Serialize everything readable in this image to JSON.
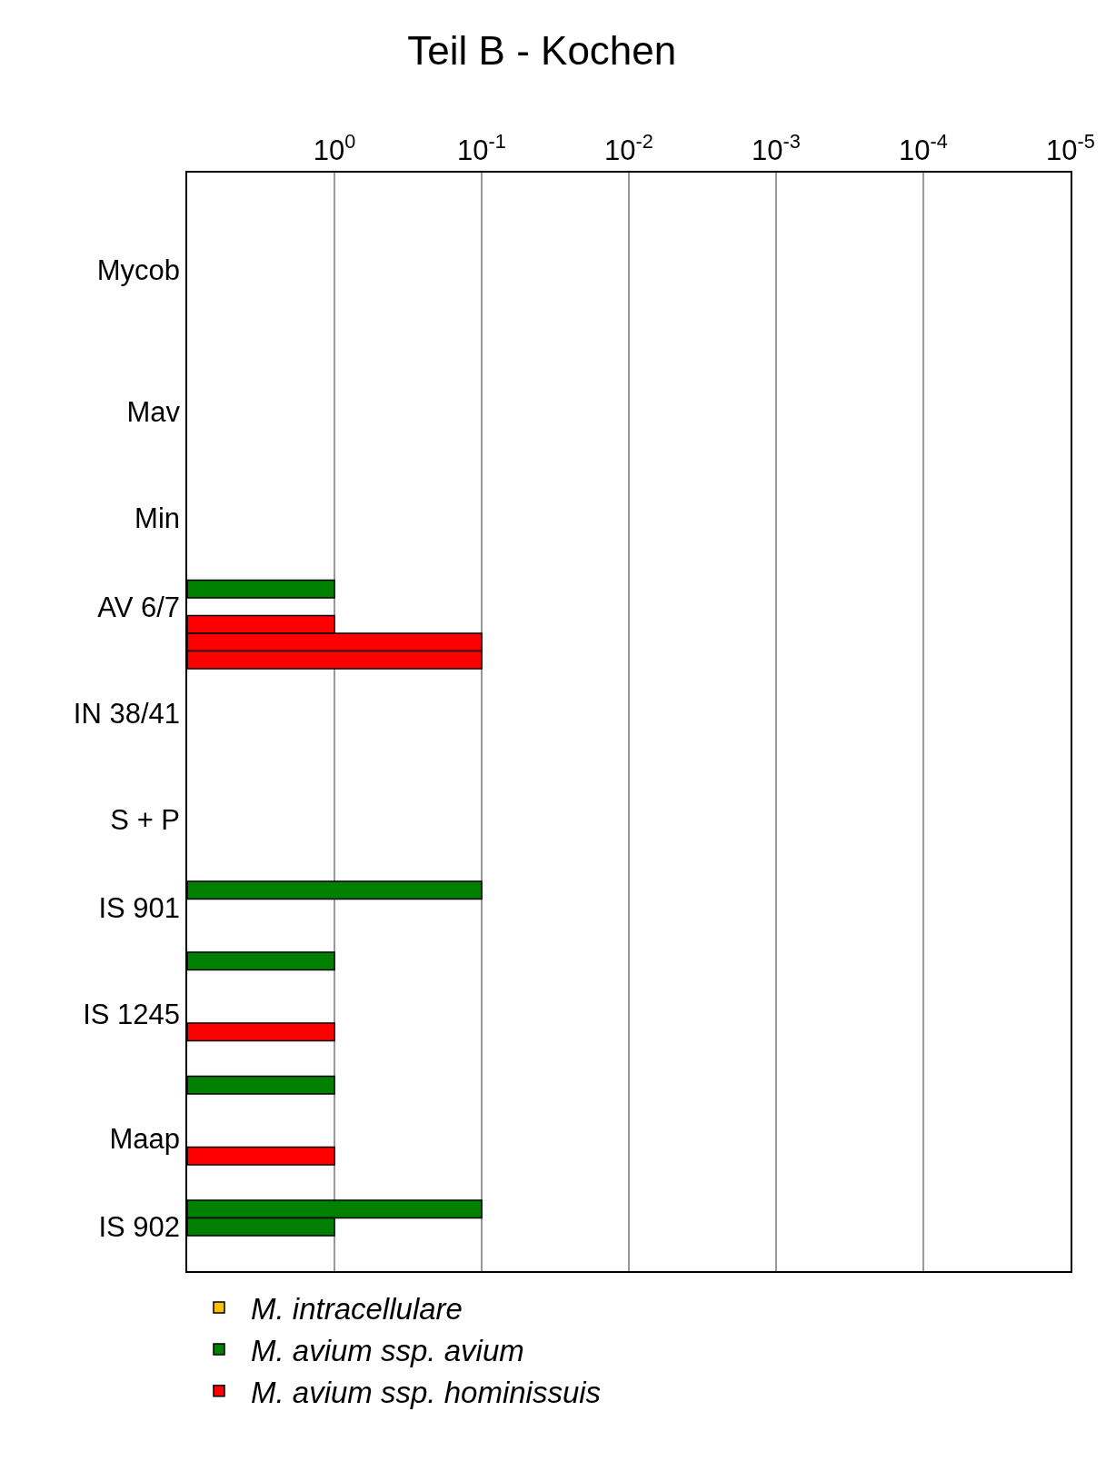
{
  "chart_data": {
    "type": "bar",
    "orientation": "horizontal",
    "title": "Teil B - Kochen",
    "log": "x",
    "xlim": [
      10,
      1e-05
    ],
    "xticks": [
      {
        "value": 1,
        "label": "10$^{0}$"
      },
      {
        "value": 0.1,
        "label": "10$^{-1}$"
      },
      {
        "value": 0.01,
        "label": "10$^{-2}$"
      },
      {
        "value": 0.001,
        "label": "10$^{-3}$"
      },
      {
        "value": 0.0001,
        "label": "10$^{-4}$"
      },
      {
        "value": 1e-05,
        "label": "10$^{-5}$"
      }
    ],
    "grid": "x",
    "legend": "bottom",
    "categories": [
      null,
      null,
      null,
      null,
      null,
      "Mycob",
      null,
      null,
      null,
      null,
      null,
      null,
      null,
      "Mav",
      null,
      null,
      null,
      null,
      null,
      "Min",
      null,
      null,
      null,
      null,
      "AV 6/7",
      null,
      null,
      null,
      null,
      null,
      "IN 38/41",
      null,
      null,
      null,
      null,
      null,
      "S + P",
      null,
      null,
      null,
      null,
      "IS 901",
      null,
      null,
      null,
      null,
      null,
      "IS 1245",
      null,
      null,
      null,
      null,
      null,
      null,
      "Maap",
      null,
      null,
      null,
      null,
      "IS 902",
      null,
      null
    ],
    "series": [
      {
        "name": "M. intracellulare",
        "color": "#ffc000",
        "values": [
          null,
          null,
          null,
          null,
          null,
          null,
          null,
          null,
          null,
          null,
          null,
          null,
          null,
          null,
          null,
          null,
          null,
          null,
          null,
          null,
          null,
          null,
          null,
          null,
          null,
          null,
          null,
          null,
          null,
          null,
          null,
          null,
          null,
          null,
          null,
          null,
          null,
          null,
          null,
          null,
          null,
          null,
          null,
          null,
          null,
          null,
          null,
          null,
          null,
          null,
          null,
          null,
          null,
          null,
          null,
          null,
          null,
          null,
          null,
          null,
          null,
          null
        ]
      },
      {
        "name": "M. avium ssp. avium",
        "color": "#008000",
        "base": [
          null,
          null,
          null,
          null,
          null,
          null,
          null,
          null,
          null,
          null,
          null,
          null,
          null,
          null,
          null,
          null,
          null,
          null,
          null,
          null,
          null,
          null,
          null,
          10,
          null,
          null,
          null,
          null,
          null,
          null,
          null,
          null,
          null,
          null,
          null,
          null,
          null,
          null,
          null,
          null,
          10,
          null,
          null,
          null,
          10,
          null,
          null,
          null,
          null,
          null,
          null,
          10,
          null,
          null,
          null,
          null,
          null,
          null,
          10,
          10,
          null,
          null
        ],
        "values": [
          null,
          null,
          null,
          null,
          null,
          null,
          null,
          null,
          null,
          null,
          null,
          null,
          null,
          null,
          null,
          null,
          null,
          null,
          null,
          null,
          null,
          null,
          null,
          -9,
          null,
          null,
          null,
          null,
          null,
          null,
          null,
          null,
          null,
          null,
          null,
          null,
          null,
          null,
          null,
          null,
          -9.9,
          null,
          null,
          null,
          -9,
          null,
          null,
          null,
          null,
          null,
          null,
          -9,
          null,
          null,
          null,
          null,
          null,
          null,
          -9.9,
          -9,
          null,
          null
        ]
      },
      {
        "name": "M. avium ssp. hominissuis",
        "color": "#ff0000",
        "base": [
          null,
          null,
          null,
          null,
          null,
          null,
          null,
          null,
          null,
          null,
          null,
          null,
          null,
          null,
          null,
          null,
          null,
          null,
          null,
          null,
          null,
          null,
          null,
          null,
          null,
          10,
          10,
          10,
          null,
          null,
          null,
          null,
          null,
          null,
          null,
          null,
          null,
          null,
          null,
          null,
          null,
          null,
          null,
          null,
          null,
          null,
          null,
          null,
          10,
          null,
          null,
          null,
          null,
          null,
          null,
          10,
          null,
          null,
          null,
          null,
          null,
          null
        ],
        "values": [
          null,
          null,
          null,
          null,
          null,
          null,
          null,
          null,
          null,
          null,
          null,
          null,
          null,
          null,
          null,
          null,
          null,
          null,
          null,
          null,
          null,
          null,
          null,
          null,
          null,
          -9,
          -9.9,
          -9.9,
          null,
          null,
          null,
          null,
          null,
          null,
          null,
          null,
          null,
          null,
          null,
          null,
          null,
          null,
          null,
          null,
          null,
          null,
          null,
          null,
          -9,
          null,
          null,
          null,
          null,
          null,
          null,
          -9,
          null,
          null,
          null,
          null,
          null,
          null
        ]
      }
    ]
  }
}
